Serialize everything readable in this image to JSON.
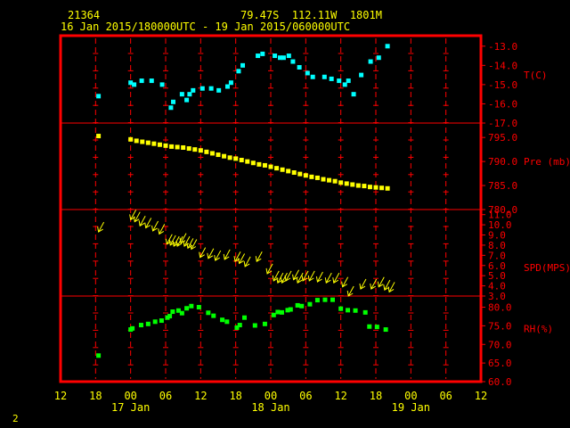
{
  "header": {
    "station": "21364",
    "coords": "79.47S  112.11W  1801M",
    "period": "16 Jan 2015/180000UTC - 19 Jan 2015/060000UTC"
  },
  "page_number": "2",
  "colors": {
    "background": "#000000",
    "frame": "#ff0000",
    "text": "#ffff00",
    "temperature": "#00ffff",
    "pressure": "#ffff00",
    "wind": "#ffff00",
    "humidity": "#00ff00",
    "axis_text": "#ff0000"
  },
  "chart_data": {
    "type": "scatter",
    "x_unit": "hours since 16 Jan 2015 12:00 UTC",
    "x_ticks": [
      {
        "h": 0,
        "label": "12"
      },
      {
        "h": 6,
        "label": "18"
      },
      {
        "h": 12,
        "label": "00"
      },
      {
        "h": 18,
        "label": "06"
      },
      {
        "h": 24,
        "label": "12"
      },
      {
        "h": 30,
        "label": "18"
      },
      {
        "h": 36,
        "label": "00"
      },
      {
        "h": 42,
        "label": "06"
      },
      {
        "h": 48,
        "label": "12"
      },
      {
        "h": 54,
        "label": "18"
      },
      {
        "h": 60,
        "label": "00"
      },
      {
        "h": 66,
        "label": "06"
      },
      {
        "h": 72,
        "label": "12"
      }
    ],
    "date_labels": [
      {
        "h": 12,
        "label": "17 Jan"
      },
      {
        "h": 36,
        "label": "18 Jan"
      },
      {
        "h": 60,
        "label": "19 Jan"
      }
    ],
    "xlim": [
      0,
      72
    ],
    "panels": [
      {
        "name": "temperature",
        "label": "T(C)",
        "ylim": [
          -17,
          -12.5
        ],
        "ticks": [
          {
            "v": -13,
            "label": "-13.0"
          },
          {
            "v": -14,
            "label": "-14.0"
          },
          {
            "v": -15,
            "label": "-15.0"
          },
          {
            "v": -16,
            "label": "-16.0"
          },
          {
            "v": -17,
            "label": "-17.0"
          }
        ],
        "marker": "square",
        "points": [
          [
            6.5,
            -15.6
          ],
          [
            12,
            -14.9
          ],
          [
            12.6,
            -15.0
          ],
          [
            13.9,
            -14.8
          ],
          [
            15.6,
            -14.8
          ],
          [
            17.4,
            -15.0
          ],
          [
            18.9,
            -16.2
          ],
          [
            19.3,
            -15.9
          ],
          [
            20.8,
            -15.5
          ],
          [
            21.6,
            -15.8
          ],
          [
            22.1,
            -15.5
          ],
          [
            22.7,
            -15.3
          ],
          [
            24.3,
            -15.2
          ],
          [
            25.8,
            -15.2
          ],
          [
            27.1,
            -15.3
          ],
          [
            28.6,
            -15.1
          ],
          [
            29.2,
            -14.9
          ],
          [
            30.5,
            -14.3
          ],
          [
            31.2,
            -14.0
          ],
          [
            33.8,
            -13.5
          ],
          [
            34.6,
            -13.4
          ],
          [
            36.7,
            -13.5
          ],
          [
            37.6,
            -13.6
          ],
          [
            38.2,
            -13.6
          ],
          [
            39.1,
            -13.5
          ],
          [
            39.8,
            -13.8
          ],
          [
            40.9,
            -14.1
          ],
          [
            42.3,
            -14.4
          ],
          [
            43.2,
            -14.6
          ],
          [
            45.2,
            -14.6
          ],
          [
            46.4,
            -14.7
          ],
          [
            47.7,
            -14.8
          ],
          [
            48.7,
            -15.0
          ],
          [
            49.3,
            -14.8
          ],
          [
            50.2,
            -15.5
          ],
          [
            51.5,
            -14.5
          ],
          [
            53.1,
            -13.8
          ],
          [
            54.5,
            -13.6
          ],
          [
            56.0,
            -13.0
          ]
        ]
      },
      {
        "name": "pressure",
        "label": "Pre (mb)",
        "ylim": [
          780,
          798
        ],
        "ticks": [
          {
            "v": 795,
            "label": "795.0"
          },
          {
            "v": 790,
            "label": "790.0"
          },
          {
            "v": 785,
            "label": "785.0"
          },
          {
            "v": 780,
            "label": "780.0"
          }
        ],
        "marker": "square",
        "points": [
          [
            6.5,
            795.3
          ],
          [
            12,
            794.6
          ],
          [
            13,
            794.3
          ],
          [
            14,
            794.1
          ],
          [
            15,
            793.9
          ],
          [
            16,
            793.7
          ],
          [
            17,
            793.5
          ],
          [
            18,
            793.3
          ],
          [
            19,
            793.1
          ],
          [
            20,
            793.0
          ],
          [
            21,
            792.9
          ],
          [
            22,
            792.7
          ],
          [
            23,
            792.5
          ],
          [
            24,
            792.3
          ],
          [
            25,
            792.0
          ],
          [
            26,
            791.7
          ],
          [
            27,
            791.4
          ],
          [
            28,
            791.1
          ],
          [
            29,
            790.8
          ],
          [
            30,
            790.6
          ],
          [
            31,
            790.3
          ],
          [
            32,
            790.0
          ],
          [
            33,
            789.7
          ],
          [
            34,
            789.4
          ],
          [
            35,
            789.2
          ],
          [
            36,
            788.9
          ],
          [
            37,
            788.6
          ],
          [
            38,
            788.3
          ],
          [
            39,
            788.0
          ],
          [
            40,
            787.7
          ],
          [
            41,
            787.4
          ],
          [
            42,
            787.1
          ],
          [
            43,
            786.8
          ],
          [
            44,
            786.6
          ],
          [
            45,
            786.3
          ],
          [
            46,
            786.1
          ],
          [
            47,
            785.9
          ],
          [
            48,
            785.6
          ],
          [
            49,
            785.4
          ],
          [
            50,
            785.2
          ],
          [
            51,
            785.0
          ],
          [
            52,
            784.9
          ],
          [
            53,
            784.7
          ],
          [
            54,
            784.6
          ],
          [
            55,
            784.5
          ],
          [
            56,
            784.4
          ]
        ]
      },
      {
        "name": "wind_speed",
        "label": "SPD(MPS)",
        "ylim": [
          3,
          11.5
        ],
        "ticks": [
          {
            "v": 11,
            "label": "11.0"
          },
          {
            "v": 10,
            "label": "10.0"
          },
          {
            "v": 9,
            "label": "9.0"
          },
          {
            "v": 8,
            "label": "8.0"
          },
          {
            "v": 7,
            "label": "7.0"
          },
          {
            "v": 6,
            "label": "6.0"
          },
          {
            "v": 5,
            "label": "5.0"
          },
          {
            "v": 4,
            "label": "4.0"
          },
          {
            "v": 3,
            "label": "3.0"
          }
        ],
        "marker": "arrow",
        "points": [
          [
            6.5,
            9.3
          ],
          [
            12,
            10.5
          ],
          [
            12.7,
            10.3
          ],
          [
            13.6,
            9.9
          ],
          [
            14.6,
            9.7
          ],
          [
            15.8,
            9.4
          ],
          [
            16.9,
            9.1
          ],
          [
            18.2,
            8.1
          ],
          [
            18.8,
            8.0
          ],
          [
            19.4,
            7.9
          ],
          [
            20.0,
            7.9
          ],
          [
            20.6,
            8.2
          ],
          [
            21.2,
            7.9
          ],
          [
            21.8,
            7.7
          ],
          [
            22.4,
            7.6
          ],
          [
            23.9,
            6.8
          ],
          [
            25.3,
            6.7
          ],
          [
            26.5,
            6.5
          ],
          [
            28.1,
            6.6
          ],
          [
            29.9,
            6.4
          ],
          [
            30.6,
            6.2
          ],
          [
            31.6,
            5.9
          ],
          [
            33.6,
            6.4
          ],
          [
            35.4,
            5.2
          ],
          [
            36.5,
            4.5
          ],
          [
            37.2,
            4.3
          ],
          [
            37.9,
            4.3
          ],
          [
            38.6,
            4.5
          ],
          [
            39.9,
            4.6
          ],
          [
            40.6,
            4.3
          ],
          [
            41.5,
            4.5
          ],
          [
            42.6,
            4.5
          ],
          [
            44.0,
            4.4
          ],
          [
            45.5,
            4.3
          ],
          [
            46.8,
            4.3
          ],
          [
            48.3,
            3.9
          ],
          [
            49.3,
            3.0
          ],
          [
            51.4,
            3.7
          ],
          [
            53.2,
            3.7
          ],
          [
            54.5,
            3.9
          ],
          [
            55.5,
            3.6
          ],
          [
            56.3,
            3.4
          ]
        ]
      },
      {
        "name": "humidity",
        "label": "RH(%)",
        "ylim": [
          60,
          83
        ],
        "ticks": [
          {
            "v": 80,
            "label": "80.0"
          },
          {
            "v": 75,
            "label": "75.0"
          },
          {
            "v": 70,
            "label": "70.0"
          },
          {
            "v": 65,
            "label": "65.0"
          },
          {
            "v": 60,
            "label": "60.0"
          }
        ],
        "marker": "square",
        "points": [
          [
            6.5,
            67
          ],
          [
            12,
            74
          ],
          [
            12.3,
            74.3
          ],
          [
            13.8,
            75.2
          ],
          [
            15.0,
            75.5
          ],
          [
            16.2,
            76.1
          ],
          [
            17.3,
            76.4
          ],
          [
            18.3,
            77.2
          ],
          [
            18.7,
            77.6
          ],
          [
            19.2,
            78.8
          ],
          [
            20.2,
            79.1
          ],
          [
            20.8,
            78.4
          ],
          [
            21.6,
            79.7
          ],
          [
            22.4,
            80.3
          ],
          [
            23.7,
            80.0
          ],
          [
            25.3,
            78.5
          ],
          [
            26.2,
            77.7
          ],
          [
            27.7,
            76.6
          ],
          [
            28.5,
            76.1
          ],
          [
            30.2,
            74.5
          ],
          [
            30.7,
            75.2
          ],
          [
            31.5,
            77.2
          ],
          [
            33.3,
            75.1
          ],
          [
            35.0,
            75.5
          ],
          [
            36.5,
            77.9
          ],
          [
            37.2,
            78.7
          ],
          [
            37.9,
            78.6
          ],
          [
            38.9,
            79.2
          ],
          [
            39.4,
            79.4
          ],
          [
            40.6,
            80.5
          ],
          [
            41.3,
            80.3
          ],
          [
            42.7,
            80.8
          ],
          [
            44.0,
            81.9
          ],
          [
            45.3,
            82.0
          ],
          [
            46.6,
            82.0
          ],
          [
            48.0,
            79.6
          ],
          [
            49.2,
            79.2
          ],
          [
            50.5,
            79.1
          ],
          [
            52.2,
            78.6
          ],
          [
            52.9,
            74.8
          ],
          [
            54.2,
            74.7
          ],
          [
            55.7,
            74.0
          ]
        ]
      }
    ]
  }
}
